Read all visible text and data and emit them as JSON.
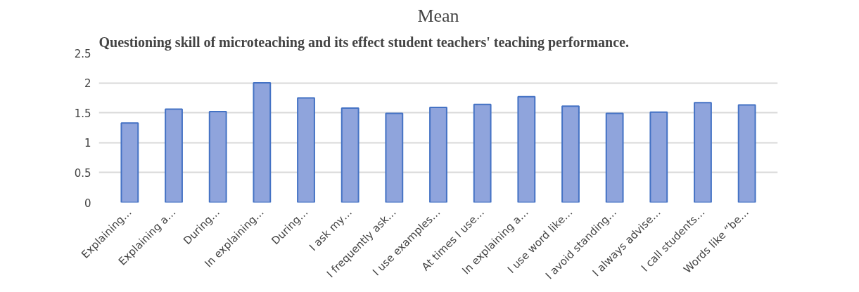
{
  "chart_data": {
    "type": "bar",
    "title": "Mean",
    "annotations": [
      "Questioning skill of microteaching and its effect student teachers' teaching performance."
    ],
    "categories": [
      "Explaining…",
      "Explaining a…",
      "During…",
      "In explaining…",
      "During…",
      "I ask my…",
      "I frequently ask…",
      "I use examples…",
      "At times I use…",
      "In explaining a…",
      "I use word like…",
      "I avoid standing…",
      "I always advise…",
      "I call students…",
      "Words like “be…"
    ],
    "values": [
      1.33,
      1.56,
      1.52,
      2.0,
      1.75,
      1.58,
      1.49,
      1.59,
      1.64,
      1.77,
      1.61,
      1.49,
      1.51,
      1.67,
      1.63
    ],
    "color": "#8fa4dc",
    "ylim": [
      0,
      2.5
    ],
    "yticks": [
      0,
      0.5,
      1,
      1.5,
      2,
      2.5
    ],
    "grid": "y"
  }
}
